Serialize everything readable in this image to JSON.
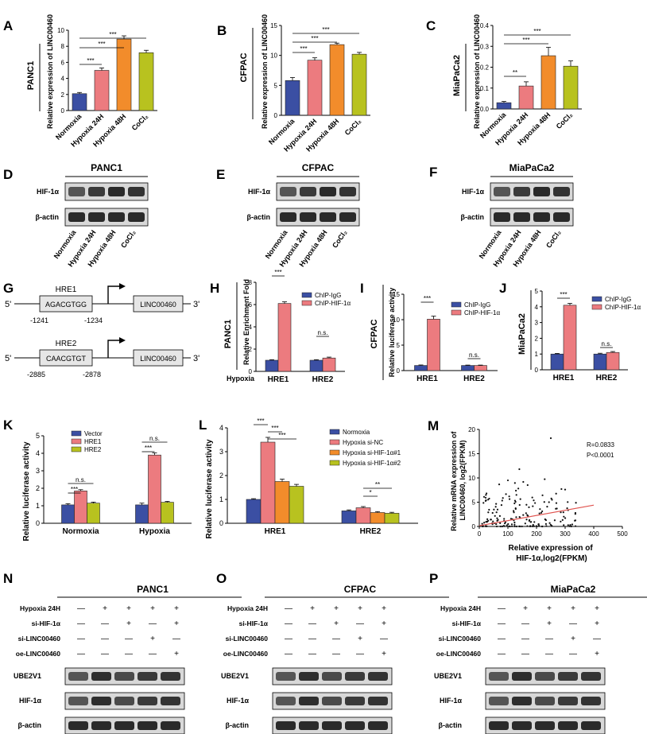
{
  "chart_data": [
    {
      "panel": "A",
      "type": "bar",
      "cell_line": "PANC1",
      "ylabel": "Relative expression of LINC00460",
      "ylim": [
        0,
        10
      ],
      "yticks": [
        0,
        2,
        4,
        6,
        8,
        10
      ],
      "categories": [
        "Normoxia",
        "Hypoxia 24H",
        "Hypoxia 48H",
        "CoCl₂"
      ],
      "values": [
        2.1,
        5.0,
        8.9,
        7.2
      ],
      "errors": [
        0.15,
        0.3,
        0.4,
        0.3
      ],
      "colors": [
        "#3b4fa3",
        "#ec7b7f",
        "#f28c2b",
        "#b8c21f"
      ],
      "sig": [
        {
          "from": 0,
          "to": 1,
          "label": "***"
        },
        {
          "from": 0,
          "to": 2,
          "label": "***"
        },
        {
          "from": 0,
          "to": 3,
          "label": "***"
        }
      ]
    },
    {
      "panel": "B",
      "type": "bar",
      "cell_line": "CFPAC",
      "ylabel": "Relative expression of LINC00460",
      "ylim": [
        0,
        15
      ],
      "yticks": [
        0,
        5,
        10,
        15
      ],
      "categories": [
        "Normoxia",
        "Hypoxia 24H",
        "Hypoxia 48H",
        "CoCl₂"
      ],
      "values": [
        5.8,
        9.2,
        11.8,
        10.2
      ],
      "errors": [
        0.5,
        0.4,
        0.25,
        0.3
      ],
      "colors": [
        "#3b4fa3",
        "#ec7b7f",
        "#f28c2b",
        "#b8c21f"
      ],
      "sig": [
        {
          "from": 0,
          "to": 1,
          "label": "***"
        },
        {
          "from": 0,
          "to": 2,
          "label": "***"
        },
        {
          "from": 0,
          "to": 3,
          "label": "***"
        }
      ]
    },
    {
      "panel": "C",
      "type": "bar",
      "cell_line": "MiaPaCa2",
      "ylabel": "Relative expression of LINC00460",
      "ylim": [
        0,
        0.4
      ],
      "yticks": [
        0.0,
        0.1,
        0.2,
        0.3,
        0.4
      ],
      "categories": [
        "Normoxia",
        "Hypoxia 24H",
        "Hypoxia 48H",
        "CoCl₂"
      ],
      "values": [
        0.03,
        0.11,
        0.255,
        0.205
      ],
      "errors": [
        0.006,
        0.02,
        0.04,
        0.025
      ],
      "colors": [
        "#3b4fa3",
        "#ec7b7f",
        "#f28c2b",
        "#b8c21f"
      ],
      "sig": [
        {
          "from": 0,
          "to": 1,
          "label": "**"
        },
        {
          "from": 0,
          "to": 2,
          "label": "***"
        },
        {
          "from": 0,
          "to": 3,
          "label": "***"
        }
      ]
    },
    {
      "panel": "H",
      "type": "bar",
      "cell_line": "PANC1",
      "ylabel": "Relative Enrichment Fold",
      "ylim": [
        0,
        8
      ],
      "yticks": [
        0,
        2,
        4,
        6,
        8
      ],
      "categories": [
        "HRE1",
        "HRE2"
      ],
      "row_label": "Hypoxia",
      "series": [
        {
          "name": "ChIP-IgG",
          "color": "#3b4fa3",
          "values": [
            1.0,
            1.0
          ],
          "errors": [
            0.05,
            0.05
          ]
        },
        {
          "name": "ChIP-HIF-1α",
          "color": "#ec7b7f",
          "values": [
            6.1,
            1.2
          ],
          "errors": [
            0.15,
            0.08
          ]
        }
      ],
      "sig": [
        {
          "group": 0,
          "label": "***"
        },
        {
          "group": 1,
          "label": "n.s."
        }
      ]
    },
    {
      "panel": "I",
      "type": "bar",
      "cell_line": "CFPAC",
      "ylabel": "Relative luciferase activity",
      "ylim": [
        0,
        15
      ],
      "yticks": [
        0,
        5,
        10,
        15
      ],
      "categories": [
        "HRE1",
        "HRE2"
      ],
      "series": [
        {
          "name": "ChIP-IgG",
          "color": "#3b4fa3",
          "values": [
            1.0,
            1.0
          ],
          "errors": [
            0.1,
            0.08
          ]
        },
        {
          "name": "ChIP-HIF-1α",
          "color": "#ec7b7f",
          "values": [
            10.1,
            1.0
          ],
          "errors": [
            0.6,
            0.08
          ]
        }
      ],
      "sig": [
        {
          "group": 0,
          "label": "***"
        },
        {
          "group": 1,
          "label": "n.s."
        }
      ]
    },
    {
      "panel": "J",
      "type": "bar",
      "cell_line": "MiaPaCa2",
      "ylabel": "",
      "ylim": [
        0,
        5
      ],
      "yticks": [
        0,
        1,
        2,
        3,
        4,
        5
      ],
      "categories": [
        "HRE1",
        "HRE2"
      ],
      "series": [
        {
          "name": "ChIP-IgG",
          "color": "#3b4fa3",
          "values": [
            1.0,
            1.0
          ],
          "errors": [
            0.04,
            0.05
          ]
        },
        {
          "name": "ChIP-HIF-1α",
          "color": "#ec7b7f",
          "values": [
            4.1,
            1.1
          ],
          "errors": [
            0.12,
            0.06
          ]
        }
      ],
      "sig": [
        {
          "group": 0,
          "label": "***"
        },
        {
          "group": 1,
          "label": "n.s."
        }
      ]
    },
    {
      "panel": "K",
      "type": "bar",
      "ylabel": "Relative luciferase activity",
      "ylim": [
        0,
        5
      ],
      "yticks": [
        0,
        1,
        2,
        3,
        4,
        5
      ],
      "categories": [
        "Normoxia",
        "Hypoxia"
      ],
      "series": [
        {
          "name": "Vector",
          "color": "#3b4fa3",
          "values": [
            1.05,
            1.05
          ],
          "errors": [
            0.07,
            0.1
          ]
        },
        {
          "name": "HRE1",
          "color": "#ec7b7f",
          "values": [
            1.85,
            3.9
          ],
          "errors": [
            0.07,
            0.12
          ]
        },
        {
          "name": "HRE2",
          "color": "#b8c21f",
          "values": [
            1.15,
            1.2
          ],
          "errors": [
            0.06,
            0.05
          ]
        }
      ],
      "sig": [
        {
          "group": 0,
          "a": 0,
          "b": 1,
          "label": "***"
        },
        {
          "group": 0,
          "a": 0,
          "b": 2,
          "label": "n.s."
        },
        {
          "group": 1,
          "a": 0,
          "b": 1,
          "label": "***"
        },
        {
          "group": 1,
          "a": 0,
          "b": 2,
          "label": "n.s."
        }
      ]
    },
    {
      "panel": "L",
      "type": "bar",
      "ylabel": "Relative luciferase activity",
      "ylim": [
        0,
        4
      ],
      "yticks": [
        0,
        1,
        2,
        3,
        4
      ],
      "categories": [
        "HRE1",
        "HRE2"
      ],
      "series": [
        {
          "name": "Normoxia",
          "color": "#3b4fa3",
          "values": [
            1.0,
            0.52
          ],
          "errors": [
            0.03,
            0.04
          ]
        },
        {
          "name": "Hypoxia si-NC",
          "color": "#ec7b7f",
          "values": [
            3.4,
            0.65
          ],
          "errors": [
            0.2,
            0.05
          ]
        },
        {
          "name": "Hypoxia si-HIF-1α#1",
          "color": "#f28c2b",
          "values": [
            1.75,
            0.45
          ],
          "errors": [
            0.1,
            0.04
          ]
        },
        {
          "name": "Hypoxia si-HIF-1α#2",
          "color": "#b8c21f",
          "values": [
            1.55,
            0.42
          ],
          "errors": [
            0.08,
            0.04
          ]
        }
      ],
      "sig": [
        {
          "group": 0,
          "a": 0,
          "b": 1,
          "label": "***"
        },
        {
          "group": 0,
          "a": 1,
          "b": 2,
          "label": "***"
        },
        {
          "group": 0,
          "a": 1,
          "b": 3,
          "label": "***"
        },
        {
          "group": 1,
          "a": 1,
          "b": 2,
          "label": "*"
        },
        {
          "group": 1,
          "a": 1,
          "b": 3,
          "label": "**"
        }
      ]
    },
    {
      "panel": "M",
      "type": "scatter",
      "xlabel": "Relative expression of HIF-1α,log2(FPKM)",
      "ylabel": "Relative mRNA expression of LINC00460, log2(FPKM)",
      "xlim": [
        0,
        500
      ],
      "ylim": [
        0,
        20
      ],
      "xticks": [
        0,
        100,
        200,
        300,
        400,
        500
      ],
      "yticks": [
        0,
        5,
        10,
        15,
        20
      ],
      "stats": [
        "R=0.0833",
        "P<0.0001"
      ],
      "fit": {
        "slope": 0.0106,
        "intercept": 0.15,
        "color": "#e0534f"
      }
    }
  ],
  "panel_labels": {
    "A": "A",
    "B": "B",
    "C": "C",
    "D": "D",
    "E": "E",
    "F": "F",
    "G": "G",
    "H": "H",
    "I": "I",
    "J": "J",
    "K": "K",
    "L": "L",
    "M": "M",
    "N": "N",
    "O": "O",
    "P": "P"
  },
  "blots_def": {
    "conditions": [
      "Normoxia",
      "Hypoxia 24H",
      "Hypoxia 48H",
      "CoCl₂"
    ],
    "D": {
      "title": "PANC1",
      "rows": [
        "HIF-1α",
        "β-actin"
      ]
    },
    "E": {
      "title": "CFPAC",
      "rows": [
        "HIF-1α",
        "β-actin"
      ]
    },
    "F": {
      "title": "MiaPaCa2",
      "rows": [
        "HIF-1α",
        "β-actin"
      ]
    }
  },
  "diagram": {
    "five": "5'",
    "three": "3'",
    "hre1": {
      "name": "HRE1",
      "seq": "AGACGTGG",
      "start": "-1241",
      "end": "-1234"
    },
    "hre2": {
      "name": "HRE2",
      "seq": "CAACGTGT",
      "start": "-2885",
      "end": "-2878"
    },
    "gene": "LINC00460"
  },
  "rescue": {
    "row_labels": [
      "Hypoxia 24H",
      "si-HIF-1α",
      "si-LINC00460",
      "oe-LINC00460"
    ],
    "matrix": [
      [
        "—",
        "+",
        "+",
        "+",
        "+"
      ],
      [
        "—",
        "—",
        "+",
        "—",
        "+"
      ],
      [
        "—",
        "—",
        "—",
        "+",
        "—"
      ],
      [
        "—",
        "—",
        "—",
        "—",
        "+"
      ]
    ],
    "blot_rows": [
      "UBE2V1",
      "HIF-1α",
      "β-actin"
    ],
    "N": "PANC1",
    "O": "CFPAC",
    "P": "MiaPaCa2"
  }
}
